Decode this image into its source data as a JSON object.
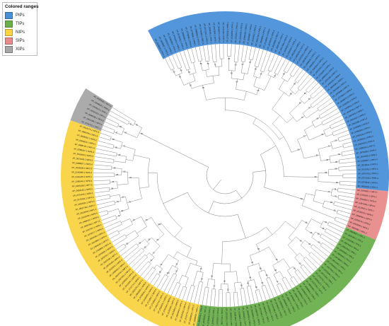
{
  "legend": {
    "title": "Colored ranges",
    "items": [
      {
        "label": "PIPs",
        "color": "#4a90d9"
      },
      {
        "label": "TIPs",
        "color": "#6ab04c"
      },
      {
        "label": "NIPs",
        "color": "#f9d342"
      },
      {
        "label": "SIPs",
        "color": "#e88a8a"
      },
      {
        "label": "XIPs",
        "color": "#a6a6a6"
      }
    ]
  },
  "tree": {
    "type": "circular-phylogeny",
    "groups": [
      {
        "name": "PIPs",
        "color": "#4a90d9",
        "leaf_count": 70,
        "leaf_prefix": "XP_0",
        "leaf_suffix": "PIP"
      },
      {
        "name": "SIPs",
        "color": "#e88a8a",
        "leaf_count": 10,
        "leaf_prefix": "NP_0",
        "leaf_suffix": "SIP"
      },
      {
        "name": "TIPs",
        "color": "#6ab04c",
        "leaf_count": 44,
        "leaf_prefix": "XP_0",
        "leaf_suffix": "TIP"
      },
      {
        "name": "NIPs",
        "color": "#f9d342",
        "leaf_count": 56,
        "leaf_prefix": "XP_0",
        "leaf_suffix": "NIP"
      },
      {
        "name": "XIPs",
        "color": "#a6a6a6",
        "leaf_count": 7,
        "leaf_prefix": "XP_0",
        "leaf_suffix": "XIP"
      }
    ],
    "bootstrap_labels": [
      "100",
      "99",
      "98",
      "97",
      "96",
      "95",
      "94",
      "92",
      "90",
      "88",
      "85",
      "82",
      "80",
      "78",
      "75",
      "72",
      "70",
      "68",
      "65",
      "60",
      "58",
      "55",
      "52",
      "50"
    ]
  }
}
